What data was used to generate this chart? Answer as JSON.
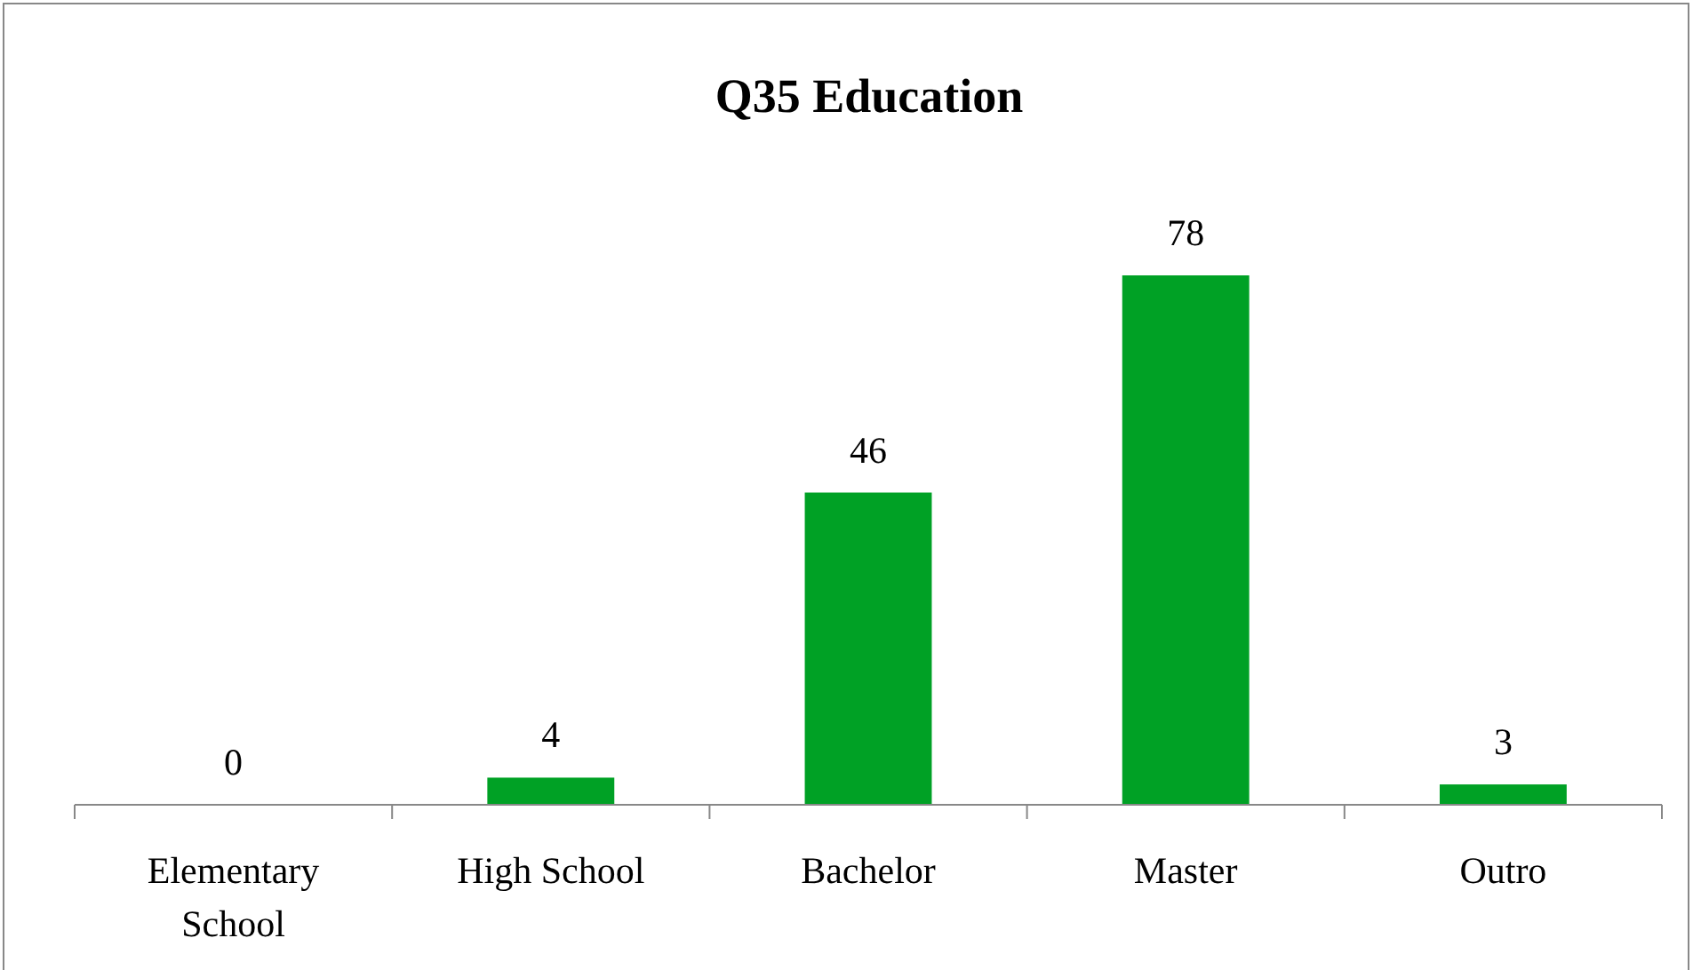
{
  "chart_data": {
    "type": "bar",
    "title": "Q35 Education",
    "categories": [
      "Elementary School",
      "High School",
      "Bachelor",
      "Master",
      "Outro"
    ],
    "values": [
      0,
      4,
      46,
      78,
      3
    ],
    "color": "#00a125",
    "data_labels": true
  }
}
